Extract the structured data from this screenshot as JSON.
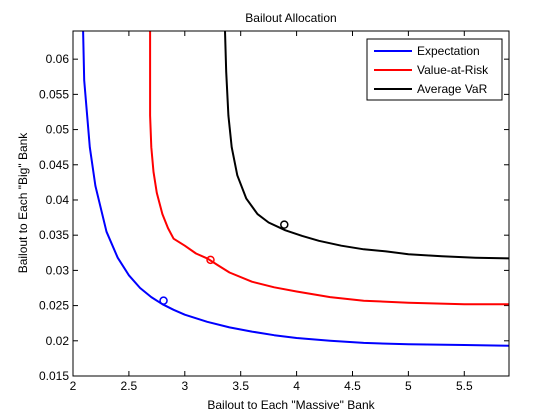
{
  "chart_data": {
    "type": "line",
    "title": "Bailout Allocation",
    "xlabel": "Bailout to Each \"Massive\" Bank",
    "ylabel": "Bailout to Each \"Big\" Bank",
    "xlim": [
      2,
      5.9
    ],
    "ylim": [
      0.015,
      0.064
    ],
    "xticks": [
      2,
      2.5,
      3,
      3.5,
      4,
      4.5,
      5,
      5.5
    ],
    "xtick_labels": [
      "2",
      "2.5",
      "3",
      "3.5",
      "4",
      "4.5",
      "5",
      "5.5"
    ],
    "yticks": [
      0.015,
      0.02,
      0.025,
      0.03,
      0.035,
      0.04,
      0.045,
      0.05,
      0.055,
      0.06
    ],
    "ytick_labels": [
      "0.015",
      "0.02",
      "0.025",
      "0.03",
      "0.035",
      "0.04",
      "0.045",
      "0.05",
      "0.055",
      "0.06"
    ],
    "grid": false,
    "legend_position": "top-right",
    "series": [
      {
        "name": "Expectation",
        "color": "#0000ff",
        "x": [
          2.09,
          2.1,
          2.15,
          2.2,
          2.3,
          2.4,
          2.5,
          2.6,
          2.7,
          2.8,
          2.9,
          3.0,
          3.2,
          3.4,
          3.6,
          3.8,
          4.0,
          4.3,
          4.6,
          5.0,
          5.5,
          5.9
        ],
        "y": [
          0.064,
          0.057,
          0.0475,
          0.042,
          0.0355,
          0.0318,
          0.0293,
          0.0275,
          0.0262,
          0.0252,
          0.0244,
          0.0237,
          0.0227,
          0.0219,
          0.0213,
          0.0208,
          0.0204,
          0.02,
          0.0197,
          0.0195,
          0.0194,
          0.0193
        ],
        "marker": {
          "x": 2.81,
          "y": 0.0257
        }
      },
      {
        "name": "Value-at-Risk",
        "color": "#ff0000",
        "x": [
          2.69,
          2.69,
          2.7,
          2.72,
          2.75,
          2.8,
          2.85,
          2.9,
          3.0,
          3.1,
          3.2,
          3.3,
          3.4,
          3.6,
          3.8,
          4.0,
          4.3,
          4.6,
          5.0,
          5.5,
          5.9
        ],
        "y": [
          0.064,
          0.052,
          0.0475,
          0.044,
          0.041,
          0.038,
          0.036,
          0.0345,
          0.0335,
          0.0324,
          0.0317,
          0.0307,
          0.0297,
          0.0284,
          0.0276,
          0.027,
          0.0262,
          0.0257,
          0.0254,
          0.0252,
          0.0252
        ],
        "marker": {
          "x": 3.23,
          "y": 0.0315
        }
      },
      {
        "name": "Average VaR",
        "color": "#000000",
        "x": [
          3.36,
          3.37,
          3.39,
          3.42,
          3.47,
          3.55,
          3.65,
          3.75,
          3.9,
          4.05,
          4.2,
          4.4,
          4.6,
          4.8,
          5.0,
          5.3,
          5.6,
          5.9
        ],
        "y": [
          0.064,
          0.0582,
          0.052,
          0.0475,
          0.0435,
          0.0402,
          0.038,
          0.0368,
          0.0357,
          0.0349,
          0.0342,
          0.0335,
          0.033,
          0.0327,
          0.0323,
          0.032,
          0.0318,
          0.0317
        ],
        "marker": {
          "x": 3.89,
          "y": 0.0365
        }
      }
    ]
  }
}
